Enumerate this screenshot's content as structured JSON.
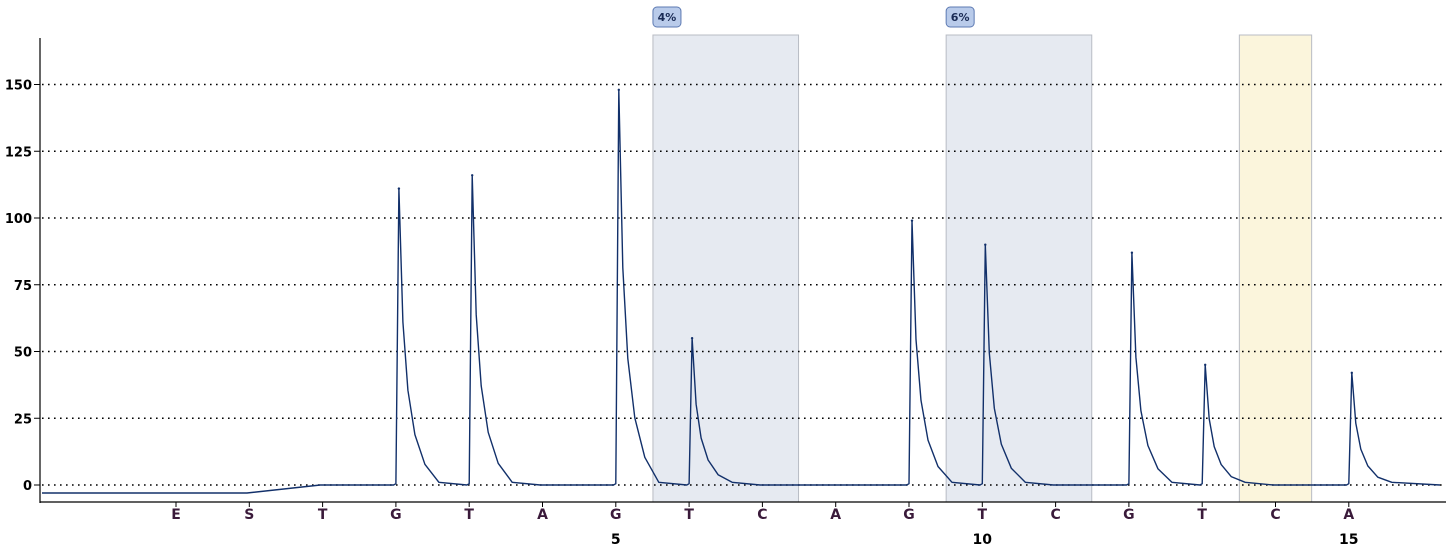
{
  "chart_data": {
    "type": "line",
    "title": "",
    "xlabel": "",
    "ylabel": "",
    "ylim": [
      -5,
      170
    ],
    "yticks": [
      0,
      25,
      50,
      75,
      100,
      125,
      150
    ],
    "grid": "horizontal dotted",
    "dispensations": [
      "E",
      "S",
      "T",
      "G",
      "T",
      "A",
      "G",
      "T",
      "C",
      "A",
      "G",
      "T",
      "C",
      "G",
      "T",
      "C",
      "A"
    ],
    "position_labels": [
      {
        "dispensation_index": 6,
        "label": "5"
      },
      {
        "dispensation_index": 11,
        "label": "10"
      },
      {
        "dispensation_index": 16,
        "label": "15"
      }
    ],
    "baseline": [
      {
        "from": 0,
        "to": 2,
        "value": -3
      },
      {
        "from": 2,
        "to": 17,
        "value": 0
      }
    ],
    "peaks": [
      {
        "dispensation_index": 3,
        "height": 111
      },
      {
        "dispensation_index": 4,
        "height": 116
      },
      {
        "dispensation_index": 6,
        "height": 148
      },
      {
        "dispensation_index": 7,
        "height": 55
      },
      {
        "dispensation_index": 10,
        "height": 99
      },
      {
        "dispensation_index": 11,
        "height": 90
      },
      {
        "dispensation_index": 13,
        "height": 87
      },
      {
        "dispensation_index": 14,
        "height": 45
      },
      {
        "dispensation_index": 16,
        "height": 42
      }
    ],
    "highlight_regions": [
      {
        "from_index": 7,
        "to_index": 8,
        "color": "#e6eaf1",
        "badge": "4%"
      },
      {
        "from_index": 11,
        "to_index": 12,
        "color": "#e6eaf1",
        "badge": "6%"
      },
      {
        "from_index": 15,
        "to_index": 15,
        "color": "#fbf5dc",
        "badge": ""
      }
    ],
    "colors": {
      "line": "#12306a",
      "grid": "#000000",
      "dispensation_label": "#3a1a3a",
      "badge_fill": "#b9cbea",
      "badge_stroke": "#5c79b2"
    }
  }
}
